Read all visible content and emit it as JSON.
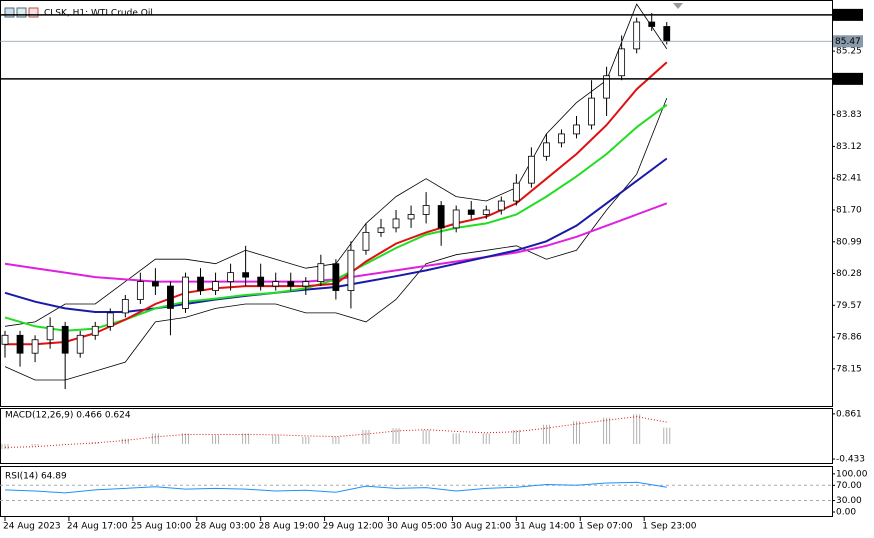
{
  "chart_data": [
    {
      "type": "candlestick",
      "title": "CLSK, H1: WTI Crude Oil",
      "x": [
        0,
        4,
        8,
        12,
        16,
        20,
        24,
        28,
        32,
        36,
        40,
        44,
        48,
        52,
        56,
        60,
        64,
        68,
        72,
        76,
        80,
        84,
        88,
        92,
        96,
        100,
        104,
        108,
        112,
        116,
        120,
        124,
        128,
        132,
        136,
        140,
        144,
        148,
        152,
        156,
        160,
        164,
        168,
        172,
        176
      ],
      "open": [
        78.7,
        78.9,
        78.5,
        78.8,
        79.1,
        78.5,
        78.9,
        79.1,
        79.4,
        79.7,
        80.1,
        80.0,
        79.5,
        80.2,
        79.9,
        80.1,
        80.3,
        80.2,
        80.0,
        80.1,
        80.0,
        80.1,
        80.5,
        79.9,
        80.8,
        81.2,
        81.3,
        81.5,
        81.6,
        81.8,
        81.3,
        81.7,
        81.6,
        81.7,
        81.9,
        82.3,
        82.9,
        83.2,
        83.4,
        83.6,
        84.2,
        84.7,
        85.3,
        85.9,
        85.8
      ],
      "high": [
        79.0,
        79.0,
        78.9,
        79.3,
        79.2,
        79.0,
        79.2,
        79.5,
        79.8,
        80.3,
        80.4,
        80.1,
        80.3,
        80.4,
        80.3,
        80.5,
        80.9,
        80.5,
        80.3,
        80.3,
        80.2,
        80.7,
        80.6,
        81.0,
        81.4,
        81.5,
        81.7,
        81.8,
        82.1,
        81.9,
        81.8,
        81.9,
        81.8,
        82.0,
        82.5,
        83.1,
        83.4,
        83.5,
        83.8,
        84.6,
        84.9,
        85.6,
        86.0,
        86.1,
        85.9
      ],
      "low": [
        78.4,
        78.2,
        78.3,
        78.6,
        77.7,
        78.4,
        78.8,
        79.0,
        79.3,
        79.6,
        79.8,
        78.9,
        79.4,
        79.8,
        79.8,
        79.9,
        80.0,
        79.9,
        79.9,
        79.9,
        79.8,
        80.0,
        79.7,
        79.5,
        80.7,
        81.1,
        81.2,
        81.3,
        81.4,
        80.9,
        81.2,
        81.5,
        81.5,
        81.6,
        81.8,
        82.2,
        82.8,
        83.1,
        83.3,
        83.5,
        83.8,
        84.6,
        85.2,
        85.7,
        85.4
      ],
      "close": [
        78.9,
        78.5,
        78.8,
        79.1,
        78.5,
        78.9,
        79.1,
        79.4,
        79.7,
        80.1,
        80.0,
        79.5,
        80.2,
        79.9,
        80.1,
        80.3,
        80.2,
        80.0,
        80.1,
        80.0,
        80.1,
        80.5,
        79.9,
        80.8,
        81.2,
        81.3,
        81.5,
        81.6,
        81.8,
        81.3,
        81.7,
        81.6,
        81.7,
        81.9,
        82.3,
        82.9,
        83.2,
        83.4,
        83.6,
        84.2,
        84.7,
        85.3,
        85.9,
        85.8,
        85.47
      ],
      "overlays": {
        "x": [
          0,
          8,
          16,
          24,
          32,
          40,
          48,
          56,
          64,
          72,
          80,
          88,
          96,
          104,
          112,
          120,
          128,
          136,
          144,
          152,
          160,
          168,
          176
        ],
        "series": [
          {
            "color": "#000000",
            "values": [
              79.1,
              79.2,
              79.6,
              79.6,
              80.1,
              80.6,
              80.6,
              80.5,
              80.8,
              80.6,
              80.4,
              80.5,
              81.4,
              82.0,
              82.4,
              82.0,
              81.9,
              82.2,
              83.4,
              84.1,
              84.6,
              86.3,
              85.3
            ]
          },
          {
            "color": "#000000",
            "values": [
              78.2,
              77.9,
              77.9,
              78.1,
              78.3,
              79.2,
              79.3,
              79.5,
              79.6,
              79.6,
              79.4,
              79.4,
              79.2,
              79.7,
              80.5,
              80.7,
              80.8,
              80.9,
              80.6,
              80.8,
              81.7,
              82.5,
              84.2
            ]
          },
          {
            "color": "#e020e0",
            "values": [
              80.5,
              80.4,
              80.3,
              80.2,
              80.15,
              80.1,
              80.1,
              80.1,
              80.1,
              80.1,
              80.1,
              80.15,
              80.25,
              80.35,
              80.45,
              80.55,
              80.65,
              80.75,
              80.9,
              81.1,
              81.35,
              81.6,
              81.85
            ]
          },
          {
            "color": "#1a1aa8",
            "values": [
              79.85,
              79.65,
              79.5,
              79.42,
              79.42,
              79.5,
              79.6,
              79.7,
              79.78,
              79.85,
              79.92,
              79.98,
              80.1,
              80.22,
              80.35,
              80.5,
              80.65,
              80.8,
              81.0,
              81.35,
              81.85,
              82.35,
              82.85
            ]
          },
          {
            "color": "#22dd22",
            "values": [
              79.3,
              79.1,
              79.0,
              79.05,
              79.25,
              79.5,
              79.65,
              79.72,
              79.8,
              79.85,
              79.95,
              80.15,
              80.5,
              80.85,
              81.15,
              81.3,
              81.4,
              81.6,
              82.0,
              82.45,
              82.95,
              83.55,
              84.05
            ]
          },
          {
            "color": "#dd1111",
            "values": [
              78.7,
              78.7,
              78.75,
              78.95,
              79.25,
              79.6,
              79.85,
              79.95,
              80.0,
              80.0,
              80.0,
              80.05,
              80.55,
              80.95,
              81.2,
              81.4,
              81.55,
              81.85,
              82.4,
              82.95,
              83.6,
              84.4,
              85.0
            ]
          }
        ]
      },
      "levels": [
        {
          "value": 86.06,
          "color": "#000000"
        },
        {
          "value": 84.63,
          "color": "#000000"
        },
        {
          "value": 85.47,
          "color": "#8899aa"
        }
      ],
      "xlim": [
        -1.33,
        219.95
      ],
      "ylim": [
        77.32,
        86.37
      ],
      "yticks": [
        85.25,
        83.83,
        83.12,
        82.41,
        {
          "value": 81.7,
          "label": "81.70"
        },
        80.99,
        80.28,
        79.57,
        78.86,
        78.15
      ],
      "xticks": [
        {
          "value": 0,
          "label": "24 Aug 2023"
        },
        {
          "value": 17,
          "label": "24 Aug 17:00"
        },
        {
          "value": 34,
          "label": "25 Aug 10:00"
        },
        {
          "value": 51,
          "label": "28 Aug 03:00"
        },
        {
          "value": 68,
          "label": "28 Aug 19:00"
        },
        {
          "value": 85,
          "label": "29 Aug 12:00"
        },
        {
          "value": 102,
          "label": "30 Aug 05:00"
        },
        {
          "value": 119,
          "label": "30 Aug 21:00"
        },
        {
          "value": 136,
          "label": "31 Aug 14:00"
        },
        {
          "value": 153,
          "label": "1 Sep 07:00"
        },
        {
          "value": 170,
          "label": "1 Sep 23:00"
        }
      ]
    },
    {
      "type": "macd",
      "title": "MACD(12,26,9) 0.466 0.624",
      "x": [
        0,
        8,
        16,
        24,
        32,
        40,
        48,
        56,
        64,
        72,
        80,
        88,
        96,
        104,
        112,
        120,
        128,
        136,
        144,
        152,
        160,
        168,
        176
      ],
      "histogram": [
        -0.15,
        -0.05,
        0.0,
        0.05,
        0.15,
        0.3,
        0.3,
        0.25,
        0.3,
        0.25,
        0.2,
        0.2,
        0.4,
        0.45,
        0.4,
        0.3,
        0.3,
        0.4,
        0.55,
        0.65,
        0.75,
        0.85,
        0.466
      ],
      "signal": [
        -0.1,
        -0.08,
        -0.02,
        0.03,
        0.1,
        0.2,
        0.27,
        0.27,
        0.27,
        0.26,
        0.23,
        0.21,
        0.28,
        0.37,
        0.41,
        0.36,
        0.32,
        0.35,
        0.45,
        0.57,
        0.68,
        0.78,
        0.624
      ],
      "hist_color": "#b0b0b0",
      "signal_color": "#dd1111",
      "xlim": [
        -1.33,
        219.95
      ],
      "ylim": [
        -0.546,
        1.0
      ],
      "yticks": [
        0.861,
        -0.433
      ]
    },
    {
      "type": "rsi",
      "title": "RSI(14) 64.89",
      "color": "#1e90ff",
      "x": [
        0,
        8,
        16,
        24,
        32,
        40,
        48,
        56,
        64,
        72,
        80,
        88,
        96,
        104,
        112,
        120,
        128,
        136,
        144,
        152,
        160,
        168,
        176
      ],
      "values": [
        58,
        55,
        50,
        58,
        62,
        66,
        60,
        62,
        60,
        55,
        57,
        52,
        68,
        62,
        64,
        55,
        62,
        65,
        72,
        70,
        76,
        78,
        64.89
      ],
      "levels": [
        70,
        30
      ],
      "xlim": [
        -1.33,
        219.95
      ],
      "ylim": [
        -10.5,
        118
      ],
      "yticks": [
        {
          "value": 100,
          "label": "100.00"
        },
        {
          "value": 70,
          "label": "70.00"
        },
        {
          "value": 30,
          "label": "30.00"
        },
        {
          "value": 0,
          "label": "0.00"
        }
      ]
    }
  ]
}
